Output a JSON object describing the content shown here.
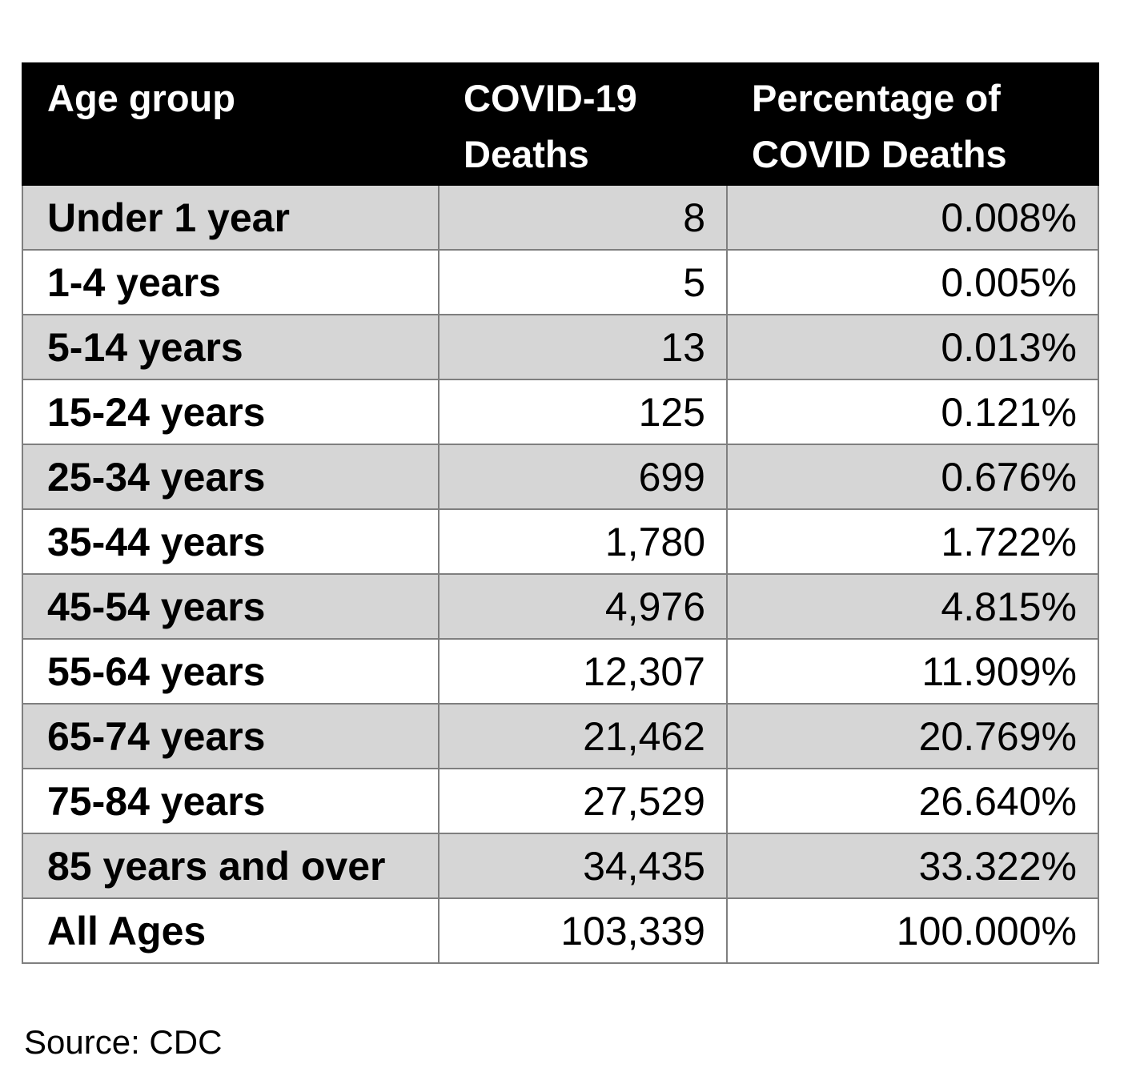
{
  "table": {
    "headers": {
      "age_group": [
        "Age group"
      ],
      "deaths": [
        "COVID-19",
        "Deaths"
      ],
      "percentage": [
        "Percentage of",
        "COVID Deaths"
      ]
    },
    "rows": [
      {
        "age": "Under 1 year",
        "deaths": "8",
        "pct": "0.008%"
      },
      {
        "age": "1-4 years",
        "deaths": "5",
        "pct": "0.005%"
      },
      {
        "age": "5-14 years",
        "deaths": "13",
        "pct": "0.013%"
      },
      {
        "age": "15-24 years",
        "deaths": "125",
        "pct": "0.121%"
      },
      {
        "age": "25-34 years",
        "deaths": "699",
        "pct": "0.676%"
      },
      {
        "age": "35-44 years",
        "deaths": "1,780",
        "pct": "1.722%"
      },
      {
        "age": "45-54 years",
        "deaths": "4,976",
        "pct": "4.815%"
      },
      {
        "age": "55-64 years",
        "deaths": "12,307",
        "pct": "11.909%"
      },
      {
        "age": "65-74 years",
        "deaths": "21,462",
        "pct": "20.769%"
      },
      {
        "age": "75-84 years",
        "deaths": "27,529",
        "pct": "26.640%"
      },
      {
        "age": "85 years and over",
        "deaths": "34,435",
        "pct": "33.322%"
      },
      {
        "age": "All Ages",
        "deaths": "103,339",
        "pct": "100.000%"
      }
    ]
  },
  "source": "Source: CDC",
  "colors": {
    "header_bg": "#000000",
    "header_text": "#ffffff",
    "shaded_row": "#d6d6d6",
    "plain_row": "#ffffff",
    "border": "#7f7f7f"
  }
}
